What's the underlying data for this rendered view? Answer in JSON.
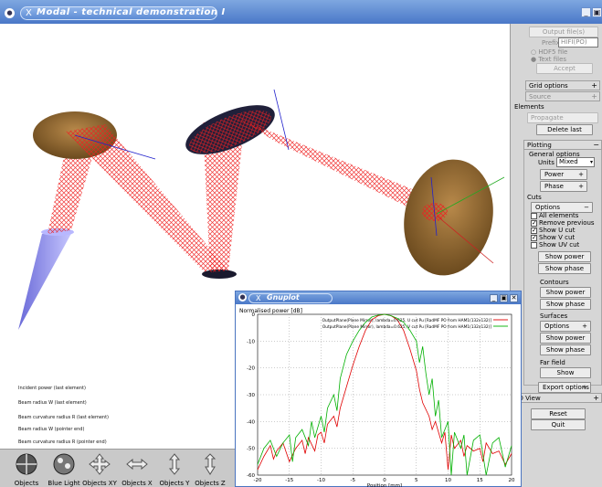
{
  "window": {
    "title": "Modal - technical demonstration I",
    "menu_glyph": "●",
    "x_glyph": "X",
    "minimize": "_",
    "maximize": "▣"
  },
  "info": {
    "incident_power": "Incident power (last element)",
    "beam_radius_last": "Beam radius W (last element)",
    "curv_radius_last": "Beam curvature radius R (last element)",
    "beam_radius_pointer": "Beam radius W (pointer end)",
    "curv_radius_pointer": "Beam curvature radius R (pointer end)"
  },
  "toolbar": {
    "items": [
      {
        "label": "Objects",
        "icon": "sphere-icon"
      },
      {
        "label": "Blue Light",
        "icon": "ball-icon"
      },
      {
        "label": "Objects XY",
        "icon": "move-xy-icon"
      },
      {
        "label": "Objects X",
        "icon": "move-x-icon"
      },
      {
        "label": "Objects Y",
        "icon": "move-y-icon"
      },
      {
        "label": "Objects Z",
        "icon": "move-z-icon"
      }
    ]
  },
  "panel": {
    "output_files": "Output file(s)",
    "prefix_label": "Prefix",
    "prefix_value": "HIFI(PO)",
    "hdf5": "HDF5 file",
    "text_files": "Text files",
    "accept": "Accept",
    "grid_options": "Grid options",
    "source": "Source",
    "elements": "Elements",
    "propagate": "Propagate",
    "delete_last": "Delete last",
    "plotting": "Plotting",
    "general_options": "General options",
    "units_label": "Units",
    "units_value": "Mixed",
    "power": "Power",
    "phase": "Phase",
    "cuts": "Cuts",
    "options": "Options",
    "all_elements": "All elements",
    "remove_previous": "Remove previous",
    "show_u_cut": "Show U cut",
    "show_v_cut": "Show V cut",
    "show_uv_cut": "Show UV cut",
    "show_power": "Show power",
    "show_phase": "Show phase",
    "contours": "Contours",
    "surfaces": "Surfaces",
    "far_field": "Far field",
    "show": "Show",
    "export_options": "Export options",
    "view_3d": "3D View",
    "reset": "Reset",
    "quit": "Quit",
    "plus": "+",
    "minus": "−"
  },
  "gnuplot": {
    "title": "Gnuplot",
    "x_glyph": "X",
    "minimize": "_",
    "maximize": "▣",
    "close": "✕"
  },
  "chart_data": {
    "type": "line",
    "title": "Normalised power [dB]",
    "xlabel": "Position [mm]",
    "ylabel": "",
    "xlim": [
      -20,
      20
    ],
    "ylim": [
      -60,
      0
    ],
    "xticks": [
      -20,
      -15,
      -10,
      -5,
      0,
      5,
      10,
      15,
      20
    ],
    "yticks": [
      0,
      -10,
      -20,
      -30,
      -40,
      -50,
      -60
    ],
    "grid": true,
    "legend_position": "top-right",
    "series": [
      {
        "name": "OutputPlane(Plane Mirror), lambda=0.625, U cut Pu [RadMF PO from HAM1(132x132)]",
        "color": "#e00000",
        "x": [
          -20,
          -19,
          -18,
          -17.5,
          -17,
          -16,
          -15,
          -14,
          -13,
          -12.5,
          -12,
          -11,
          -10.5,
          -10,
          -9.5,
          -9,
          -8,
          -7.5,
          -7,
          -6,
          -5,
          -4,
          -3,
          -2,
          -1,
          0,
          1,
          2,
          3,
          4,
          5,
          5.5,
          6,
          7,
          7.5,
          8,
          9,
          9.5,
          10,
          10.5,
          11,
          12,
          12.5,
          13,
          14,
          15,
          15.5,
          16,
          17,
          18,
          19,
          20
        ],
        "y": [
          -58,
          -53,
          -49,
          -54,
          -51,
          -48,
          -55,
          -50,
          -47,
          -52,
          -46,
          -51,
          -45,
          -44,
          -48,
          -41,
          -38,
          -42,
          -35,
          -27,
          -19,
          -12,
          -6,
          -2,
          -0.5,
          0,
          -0.5,
          -2,
          -6,
          -13,
          -21,
          -28,
          -33,
          -38,
          -43,
          -40,
          -48,
          -44,
          -58,
          -45,
          -50,
          -47,
          -53,
          -49,
          -51,
          -50,
          -55,
          -48,
          -52,
          -51,
          -56,
          -52
        ]
      },
      {
        "name": "OutputPlane(Plane Mirror), lambda=0.625, V cut Pu [RadMF PO from HAM1(132x132)]",
        "color": "#00b000",
        "x": [
          -20,
          -19,
          -18,
          -17,
          -16,
          -15,
          -14.5,
          -14,
          -13,
          -12,
          -11.5,
          -11,
          -10,
          -9.5,
          -9,
          -8,
          -7.5,
          -7,
          -6,
          -5,
          -4,
          -3,
          -2,
          -1,
          0,
          1,
          2,
          3,
          4,
          5,
          5.5,
          6,
          6.5,
          7,
          7.5,
          8,
          8.5,
          9,
          10,
          10.5,
          11,
          12,
          12.5,
          13,
          14,
          15,
          16,
          17,
          18,
          19,
          20
        ],
        "y": [
          -56,
          -50,
          -47,
          -53,
          -48,
          -45,
          -55,
          -46,
          -43,
          -49,
          -40,
          -46,
          -38,
          -44,
          -35,
          -30,
          -36,
          -24,
          -15,
          -10,
          -6,
          -3,
          -1,
          -0.3,
          0,
          -0.5,
          -1.5,
          -3,
          -6,
          -10,
          -18,
          -12,
          -22,
          -30,
          -24,
          -38,
          -32,
          -46,
          -40,
          -60,
          -44,
          -50,
          -45,
          -60,
          -47,
          -45,
          -60,
          -48,
          -46,
          -57,
          -49
        ]
      }
    ]
  }
}
